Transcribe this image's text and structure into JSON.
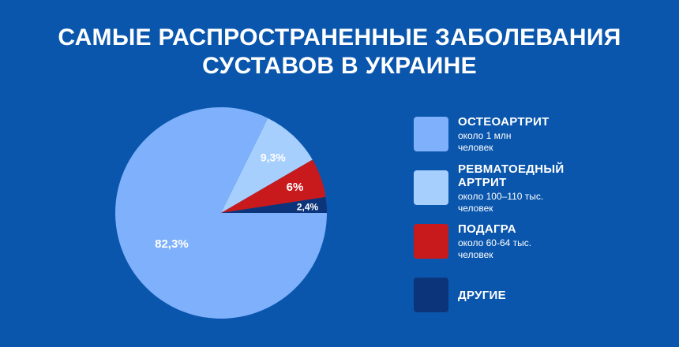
{
  "title": {
    "line1": "САМЫЕ РАСПРОСТРАНЕННЫЕ ЗАБОЛЕВАНИЯ",
    "line2": "СУСТАВОВ В УКРАИНЕ"
  },
  "colors": {
    "background": "#0a56ad",
    "text": "#ffffff"
  },
  "chart_data": {
    "type": "pie",
    "title": "САМЫЕ РАСПРОСТРАНЕННЫЕ ЗАБОЛЕВАНИЯ СУСТАВОВ В УКРАИНЕ",
    "legend_position": "right",
    "slices": [
      {
        "label": "ОСТЕОАРТРИТ",
        "sub": "около 1 млн человек",
        "value": 82.3,
        "value_label": "82,3%",
        "color": "#7eb0fb"
      },
      {
        "label": "РЕВМАТОЕДНЫЙ АРТРИТ",
        "sub": "около 100–110 тыс. человек",
        "value": 9.3,
        "value_label": "9,3%",
        "color": "#a6cffd"
      },
      {
        "label": "ПОДАГРА",
        "sub": "около 60-64 тыс. человек",
        "value": 6.0,
        "value_label": "6%",
        "color": "#c81a1c"
      },
      {
        "label": "ДРУГИЕ",
        "sub": "",
        "value": 2.4,
        "value_label": "2,4%",
        "color": "#0c347a"
      }
    ]
  }
}
